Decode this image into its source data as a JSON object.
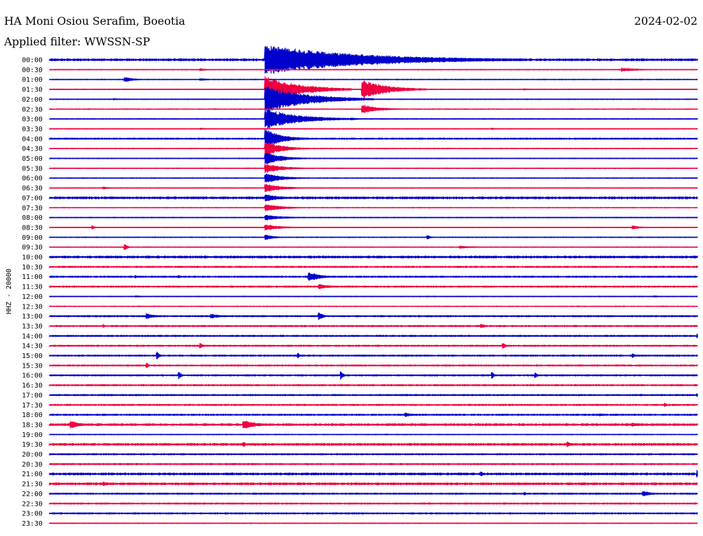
{
  "chart_data": {
    "type": "line",
    "title": "HA Moni Osiou Serafim, Boeotia",
    "subtitle": "Applied filter: WWSSN-SP",
    "date": "2024-02-02",
    "ylabel": "HHZ - 20000",
    "colors": {
      "odd": "#0000cc",
      "even": "#ee0040",
      "text": "#000000",
      "background": "#ffffff"
    },
    "rows": [
      "00:00",
      "00:30",
      "01:00",
      "01:30",
      "02:00",
      "02:30",
      "03:00",
      "03:30",
      "04:00",
      "04:30",
      "05:00",
      "05:30",
      "06:00",
      "06:30",
      "07:00",
      "07:30",
      "08:00",
      "08:30",
      "09:00",
      "09:30",
      "10:00",
      "10:30",
      "11:00",
      "11:30",
      "12:00",
      "12:30",
      "13:00",
      "13:30",
      "14:00",
      "14:30",
      "15:00",
      "15:30",
      "16:00",
      "16:30",
      "17:00",
      "17:30",
      "18:00",
      "18:30",
      "19:00",
      "19:30",
      "20:00",
      "20:30",
      "21:00",
      "21:30",
      "22:00",
      "22:30",
      "23:00",
      "23:30"
    ],
    "row_minutes": 30,
    "noise": [
      3,
      1,
      1,
      1,
      1,
      1,
      1,
      1,
      2,
      1,
      1,
      1,
      1,
      1,
      3,
      1,
      1,
      1,
      1,
      1,
      3,
      2,
      2,
      2,
      1,
      1,
      2,
      2,
      2,
      2,
      2,
      2,
      2,
      2,
      2,
      2,
      2,
      3,
      1,
      3,
      2,
      2,
      3,
      3,
      2,
      2,
      2,
      1
    ],
    "events": [
      {
        "row": 0,
        "minute": 2,
        "amp": 3,
        "dur": 1
      },
      {
        "row": 0,
        "minute": 9,
        "amp": 3,
        "dur": 1
      },
      {
        "row": 0,
        "minute": 10,
        "amp": 44,
        "dur": 12
      },
      {
        "row": 1,
        "minute": 7,
        "amp": 3,
        "dur": 1
      },
      {
        "row": 1,
        "minute": 26.5,
        "amp": 5,
        "dur": 2
      },
      {
        "row": 2,
        "minute": 3.5,
        "amp": 7,
        "dur": 1
      },
      {
        "row": 2,
        "minute": 7,
        "amp": 3,
        "dur": 1
      },
      {
        "row": 3,
        "minute": 10,
        "amp": 40,
        "dur": 4
      },
      {
        "row": 3,
        "minute": 14.5,
        "amp": 28,
        "dur": 3
      },
      {
        "row": 3,
        "minute": 22,
        "amp": 2,
        "dur": 1
      },
      {
        "row": 4,
        "minute": 3,
        "amp": 2,
        "dur": 1
      },
      {
        "row": 4,
        "minute": 10,
        "amp": 40,
        "dur": 5
      },
      {
        "row": 5,
        "minute": 14.5,
        "amp": 12,
        "dur": 2
      },
      {
        "row": 6,
        "minute": 10,
        "amp": 30,
        "dur": 4
      },
      {
        "row": 6,
        "minute": 14,
        "amp": 3,
        "dur": 1
      },
      {
        "row": 7,
        "minute": 7,
        "amp": 2,
        "dur": 1
      },
      {
        "row": 7,
        "minute": 20.5,
        "amp": 2,
        "dur": 1
      },
      {
        "row": 8,
        "minute": 10,
        "amp": 28,
        "dur": 2
      },
      {
        "row": 9,
        "minute": 10,
        "amp": 22,
        "dur": 2
      },
      {
        "row": 10,
        "minute": 10,
        "amp": 18,
        "dur": 2
      },
      {
        "row": 11,
        "minute": 10,
        "amp": 14,
        "dur": 2
      },
      {
        "row": 12,
        "minute": 10,
        "amp": 14,
        "dur": 2
      },
      {
        "row": 13,
        "minute": 2.5,
        "amp": 3,
        "dur": 1
      },
      {
        "row": 13,
        "minute": 10,
        "amp": 12,
        "dur": 2
      },
      {
        "row": 14,
        "minute": 10,
        "amp": 10,
        "dur": 2
      },
      {
        "row": 15,
        "minute": 10,
        "amp": 10,
        "dur": 2
      },
      {
        "row": 16,
        "minute": 10,
        "amp": 8,
        "dur": 2
      },
      {
        "row": 17,
        "minute": 2,
        "amp": 5,
        "dur": 0.3
      },
      {
        "row": 17,
        "minute": 10,
        "amp": 8,
        "dur": 2
      },
      {
        "row": 17,
        "minute": 27,
        "amp": 5,
        "dur": 1
      },
      {
        "row": 18,
        "minute": 10,
        "amp": 8,
        "dur": 1
      },
      {
        "row": 18,
        "minute": 17.5,
        "amp": 7,
        "dur": 0.3
      },
      {
        "row": 19,
        "minute": 3.5,
        "amp": 9,
        "dur": 0.3
      },
      {
        "row": 19,
        "minute": 19,
        "amp": 3,
        "dur": 2
      },
      {
        "row": 21,
        "minute": 10.5,
        "amp": 2,
        "dur": 2
      },
      {
        "row": 21,
        "minute": 30,
        "amp": 3,
        "dur": 1
      },
      {
        "row": 22,
        "minute": 12,
        "amp": 13,
        "dur": 1.5
      },
      {
        "row": 22,
        "minute": 4,
        "amp": 4,
        "dur": 0.3
      },
      {
        "row": 22,
        "minute": 6,
        "amp": 4,
        "dur": 0.3
      },
      {
        "row": 23,
        "minute": 12.5,
        "amp": 6,
        "dur": 1.5
      },
      {
        "row": 24,
        "minute": 4,
        "amp": 2,
        "dur": 1
      },
      {
        "row": 24,
        "minute": 28,
        "amp": 2,
        "dur": 1
      },
      {
        "row": 26,
        "minute": 4.5,
        "amp": 8,
        "dur": 1
      },
      {
        "row": 26,
        "minute": 7.5,
        "amp": 7,
        "dur": 1
      },
      {
        "row": 26,
        "minute": 12.5,
        "amp": 11,
        "dur": 0.5
      },
      {
        "row": 27,
        "minute": 2.5,
        "amp": 4,
        "dur": 0.3
      },
      {
        "row": 27,
        "minute": 20,
        "amp": 6,
        "dur": 0.5
      },
      {
        "row": 28,
        "minute": 30,
        "amp": 6,
        "dur": 0.3
      },
      {
        "row": 29,
        "minute": 7,
        "amp": 7,
        "dur": 0.3
      },
      {
        "row": 29,
        "minute": 21,
        "amp": 10,
        "dur": 0.3
      },
      {
        "row": 30,
        "minute": 5,
        "amp": 10,
        "dur": 0.3
      },
      {
        "row": 30,
        "minute": 11.5,
        "amp": 7,
        "dur": 0.3
      },
      {
        "row": 30,
        "minute": 27,
        "amp": 6,
        "dur": 0.3
      },
      {
        "row": 31,
        "minute": 4.5,
        "amp": 8,
        "dur": 0.3
      },
      {
        "row": 32,
        "minute": 6,
        "amp": 10,
        "dur": 0.3
      },
      {
        "row": 32,
        "minute": 13.5,
        "amp": 12,
        "dur": 0.3
      },
      {
        "row": 32,
        "minute": 20.5,
        "amp": 9,
        "dur": 0.3
      },
      {
        "row": 32,
        "minute": 22.5,
        "amp": 7,
        "dur": 0.3
      },
      {
        "row": 34,
        "minute": 30,
        "amp": 4,
        "dur": 1
      },
      {
        "row": 35,
        "minute": 28.5,
        "amp": 5,
        "dur": 0.3
      },
      {
        "row": 36,
        "minute": 2.5,
        "amp": 3,
        "dur": 1
      },
      {
        "row": 36,
        "minute": 16.5,
        "amp": 5,
        "dur": 1
      },
      {
        "row": 36,
        "minute": 25.5,
        "amp": 3,
        "dur": 1
      },
      {
        "row": 37,
        "minute": 1,
        "amp": 10,
        "dur": 1.2
      },
      {
        "row": 37,
        "minute": 9,
        "amp": 13,
        "dur": 1.5
      },
      {
        "row": 37,
        "minute": 27,
        "amp": 5,
        "dur": 1
      },
      {
        "row": 39,
        "minute": 9,
        "amp": 7,
        "dur": 0.3
      },
      {
        "row": 39,
        "minute": 24,
        "amp": 8,
        "dur": 0.3
      },
      {
        "row": 42,
        "minute": 20,
        "amp": 6,
        "dur": 0.3
      },
      {
        "row": 42,
        "minute": 30,
        "amp": 12,
        "dur": 1.2
      },
      {
        "row": 43,
        "minute": 2.5,
        "amp": 5,
        "dur": 1.5
      },
      {
        "row": 43,
        "minute": 29.5,
        "amp": 3,
        "dur": 1
      },
      {
        "row": 44,
        "minute": 27.5,
        "amp": 7,
        "dur": 1
      },
      {
        "row": 44,
        "minute": 22,
        "amp": 4,
        "dur": 0.3
      },
      {
        "row": 45,
        "minute": 21,
        "amp": 2,
        "dur": 1.5
      },
      {
        "row": 46,
        "minute": 24,
        "amp": 2,
        "dur": 1
      }
    ]
  }
}
